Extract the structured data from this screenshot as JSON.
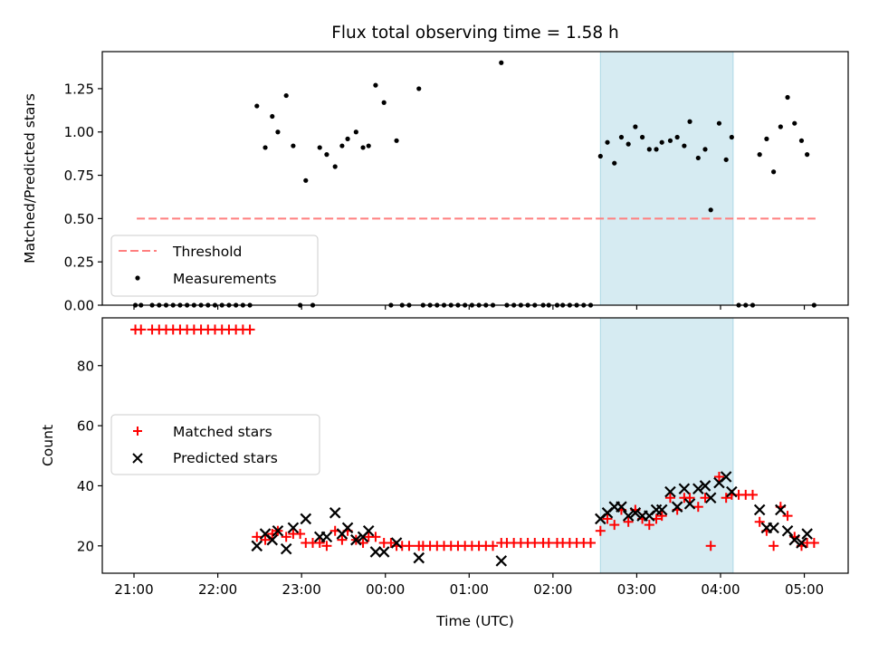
{
  "chart_data": [
    {
      "type": "scatter",
      "title": "Flux total observing time = 1.58 h",
      "xlabel": "",
      "ylabel": "Matched/Predicted stars",
      "ylim": [
        0,
        1.464
      ],
      "yticks": [
        0.0,
        0.25,
        0.5,
        0.75,
        1.0,
        1.25
      ],
      "ytick_labels": [
        "0.00",
        "0.25",
        "0.50",
        "0.75",
        "1.00",
        "1.25"
      ],
      "xlim_minutes_after_2100": [
        -22.7,
        511.4
      ],
      "xticks": [
        "21:00",
        "22:00",
        "23:00",
        "00:00",
        "01:00",
        "02:00",
        "03:00",
        "04:00",
        "05:00"
      ],
      "grid": false,
      "legend": {
        "placement": "lower-left",
        "entries": [
          "Threshold",
          "Measurements"
        ]
      },
      "shaded_region": {
        "start": "02:34",
        "end": "04:09",
        "color": "#add8e6"
      },
      "threshold": {
        "name": "Threshold",
        "value": 0.5,
        "start": "21:02",
        "end": "05:08",
        "color": "#ff7f7f",
        "style": "dashed"
      },
      "series": [
        {
          "name": "Measurements",
          "color": "#000000",
          "points": [
            [
              "21:01",
              0
            ],
            [
              "21:05",
              0
            ],
            [
              "21:13",
              0
            ],
            [
              "21:18",
              0
            ],
            [
              "21:23",
              0
            ],
            [
              "21:28",
              0
            ],
            [
              "21:33",
              0
            ],
            [
              "21:38",
              0
            ],
            [
              "21:43",
              0
            ],
            [
              "21:48",
              0
            ],
            [
              "21:53",
              0
            ],
            [
              "21:58",
              0
            ],
            [
              "22:03",
              0
            ],
            [
              "22:08",
              0
            ],
            [
              "22:13",
              0
            ],
            [
              "22:18",
              0
            ],
            [
              "22:23",
              0
            ],
            [
              "22:28",
              1.15
            ],
            [
              "22:34",
              0.91
            ],
            [
              "22:39",
              1.09
            ],
            [
              "22:43",
              1.0
            ],
            [
              "22:49",
              1.21
            ],
            [
              "22:54",
              0.92
            ],
            [
              "22:59",
              0
            ],
            [
              "23:03",
              0.72
            ],
            [
              "23:08",
              0
            ],
            [
              "23:13",
              0.91
            ],
            [
              "23:18",
              0.87
            ],
            [
              "23:24",
              0.8
            ],
            [
              "23:29",
              0.92
            ],
            [
              "23:33",
              0.96
            ],
            [
              "23:39",
              1.0
            ],
            [
              "23:44",
              0.91
            ],
            [
              "23:48",
              0.92
            ],
            [
              "23:53",
              1.27
            ],
            [
              "23:59",
              1.17
            ],
            [
              "00:04",
              0
            ],
            [
              "00:08",
              0.95
            ],
            [
              "00:12",
              0
            ],
            [
              "00:17",
              0
            ],
            [
              "00:24",
              1.25
            ],
            [
              "00:27",
              0
            ],
            [
              "00:32",
              0
            ],
            [
              "00:37",
              0
            ],
            [
              "00:42",
              0
            ],
            [
              "00:47",
              0
            ],
            [
              "00:52",
              0
            ],
            [
              "00:57",
              0
            ],
            [
              "01:02",
              0
            ],
            [
              "01:07",
              0
            ],
            [
              "01:12",
              0
            ],
            [
              "01:17",
              0
            ],
            [
              "01:23",
              1.4
            ],
            [
              "01:27",
              0
            ],
            [
              "01:32",
              0
            ],
            [
              "01:37",
              0
            ],
            [
              "01:42",
              0
            ],
            [
              "01:47",
              0
            ],
            [
              "01:53",
              0
            ],
            [
              "01:57",
              0
            ],
            [
              "02:03",
              0
            ],
            [
              "02:07",
              0
            ],
            [
              "02:12",
              0
            ],
            [
              "02:17",
              0
            ],
            [
              "02:22",
              0
            ],
            [
              "02:27",
              0
            ],
            [
              "02:34",
              0.86
            ],
            [
              "02:39",
              0.94
            ],
            [
              "02:44",
              0.82
            ],
            [
              "02:49",
              0.97
            ],
            [
              "02:54",
              0.93
            ],
            [
              "02:59",
              1.03
            ],
            [
              "03:04",
              0.97
            ],
            [
              "03:09",
              0.9
            ],
            [
              "03:14",
              0.9
            ],
            [
              "03:18",
              0.94
            ],
            [
              "03:24",
              0.95
            ],
            [
              "03:29",
              0.97
            ],
            [
              "03:34",
              0.92
            ],
            [
              "03:38",
              1.06
            ],
            [
              "03:44",
              0.85
            ],
            [
              "03:49",
              0.9
            ],
            [
              "03:53",
              0.55
            ],
            [
              "03:59",
              1.05
            ],
            [
              "04:04",
              0.84
            ],
            [
              "04:08",
              0.97
            ],
            [
              "04:13",
              0
            ],
            [
              "04:18",
              0
            ],
            [
              "04:23",
              0
            ],
            [
              "04:28",
              0.87
            ],
            [
              "04:33",
              0.96
            ],
            [
              "04:38",
              0.77
            ],
            [
              "04:43",
              1.03
            ],
            [
              "04:48",
              1.2
            ],
            [
              "04:53",
              1.05
            ],
            [
              "04:58",
              0.95
            ],
            [
              "05:02",
              0.87
            ],
            [
              "05:07",
              0
            ]
          ]
        }
      ]
    },
    {
      "type": "scatter",
      "title": "",
      "xlabel": "Time (UTC)",
      "ylabel": "Count",
      "ylim": [
        10.9,
        95.9
      ],
      "yticks": [
        20,
        40,
        60,
        80
      ],
      "ytick_labels": [
        "20",
        "40",
        "60",
        "80"
      ],
      "xlim_minutes_after_2100": [
        -22.7,
        511.4
      ],
      "xticks": [
        "21:00",
        "22:00",
        "23:00",
        "00:00",
        "01:00",
        "02:00",
        "03:00",
        "04:00",
        "05:00"
      ],
      "grid": false,
      "legend": {
        "placement": "center-left",
        "entries": [
          "Matched stars",
          "Predicted stars"
        ]
      },
      "shaded_region": {
        "start": "02:34",
        "end": "04:09",
        "color": "#add8e6"
      },
      "series": [
        {
          "name": "Matched stars",
          "marker": "+",
          "color": "#ff0000",
          "points": [
            [
              "21:01",
              92
            ],
            [
              "21:05",
              92
            ],
            [
              "21:13",
              92
            ],
            [
              "21:18",
              92
            ],
            [
              "21:23",
              92
            ],
            [
              "21:28",
              92
            ],
            [
              "21:33",
              92
            ],
            [
              "21:38",
              92
            ],
            [
              "21:43",
              92
            ],
            [
              "21:48",
              92
            ],
            [
              "21:53",
              92
            ],
            [
              "21:58",
              92
            ],
            [
              "22:03",
              92
            ],
            [
              "22:08",
              92
            ],
            [
              "22:13",
              92
            ],
            [
              "22:18",
              92
            ],
            [
              "22:23",
              92
            ],
            [
              "22:28",
              23
            ],
            [
              "22:34",
              22
            ],
            [
              "22:39",
              24
            ],
            [
              "22:43",
              25
            ],
            [
              "22:49",
              23
            ],
            [
              "22:54",
              24
            ],
            [
              "22:59",
              24
            ],
            [
              "23:03",
              21
            ],
            [
              "23:08",
              21
            ],
            [
              "23:13",
              21
            ],
            [
              "23:18",
              20
            ],
            [
              "23:24",
              25
            ],
            [
              "23:29",
              22
            ],
            [
              "23:33",
              25
            ],
            [
              "23:39",
              22
            ],
            [
              "23:44",
              21
            ],
            [
              "23:48",
              23
            ],
            [
              "23:53",
              23
            ],
            [
              "23:59",
              21
            ],
            [
              "00:04",
              21
            ],
            [
              "00:08",
              20
            ],
            [
              "00:12",
              20
            ],
            [
              "00:17",
              20
            ],
            [
              "00:24",
              20
            ],
            [
              "00:27",
              20
            ],
            [
              "00:32",
              20
            ],
            [
              "00:37",
              20
            ],
            [
              "00:42",
              20
            ],
            [
              "00:47",
              20
            ],
            [
              "00:52",
              20
            ],
            [
              "00:57",
              20
            ],
            [
              "01:02",
              20
            ],
            [
              "01:07",
              20
            ],
            [
              "01:12",
              20
            ],
            [
              "01:17",
              20
            ],
            [
              "01:23",
              21
            ],
            [
              "01:27",
              21
            ],
            [
              "01:32",
              21
            ],
            [
              "01:37",
              21
            ],
            [
              "01:42",
              21
            ],
            [
              "01:47",
              21
            ],
            [
              "01:53",
              21
            ],
            [
              "01:57",
              21
            ],
            [
              "02:03",
              21
            ],
            [
              "02:07",
              21
            ],
            [
              "02:12",
              21
            ],
            [
              "02:17",
              21
            ],
            [
              "02:22",
              21
            ],
            [
              "02:27",
              21
            ],
            [
              "02:34",
              25
            ],
            [
              "02:39",
              29
            ],
            [
              "02:44",
              27
            ],
            [
              "02:49",
              32
            ],
            [
              "02:54",
              28
            ],
            [
              "02:59",
              32
            ],
            [
              "03:04",
              29
            ],
            [
              "03:09",
              27
            ],
            [
              "03:14",
              29
            ],
            [
              "03:18",
              30
            ],
            [
              "03:24",
              36
            ],
            [
              "03:29",
              32
            ],
            [
              "03:34",
              36
            ],
            [
              "03:38",
              36
            ],
            [
              "03:44",
              33
            ],
            [
              "03:49",
              36
            ],
            [
              "03:53",
              20
            ],
            [
              "03:59",
              43
            ],
            [
              "04:04",
              36
            ],
            [
              "04:08",
              37
            ],
            [
              "04:13",
              37
            ],
            [
              "04:18",
              37
            ],
            [
              "04:23",
              37
            ],
            [
              "04:28",
              28
            ],
            [
              "04:33",
              25
            ],
            [
              "04:38",
              20
            ],
            [
              "04:43",
              33
            ],
            [
              "04:48",
              30
            ],
            [
              "04:53",
              23
            ],
            [
              "04:58",
              20
            ],
            [
              "05:02",
              21
            ],
            [
              "05:07",
              21
            ]
          ]
        },
        {
          "name": "Predicted stars",
          "marker": "x",
          "color": "#000000",
          "points": [
            [
              "22:28",
              20
            ],
            [
              "22:34",
              24
            ],
            [
              "22:39",
              22
            ],
            [
              "22:43",
              25
            ],
            [
              "22:49",
              19
            ],
            [
              "22:54",
              26
            ],
            [
              "23:03",
              29
            ],
            [
              "23:13",
              23
            ],
            [
              "23:18",
              23
            ],
            [
              "23:24",
              31
            ],
            [
              "23:29",
              24
            ],
            [
              "23:33",
              26
            ],
            [
              "23:39",
              22
            ],
            [
              "23:44",
              23
            ],
            [
              "23:48",
              25
            ],
            [
              "23:53",
              18
            ],
            [
              "23:59",
              18
            ],
            [
              "00:08",
              21
            ],
            [
              "00:24",
              16
            ],
            [
              "01:23",
              15
            ],
            [
              "02:34",
              29
            ],
            [
              "02:39",
              31
            ],
            [
              "02:44",
              33
            ],
            [
              "02:49",
              33
            ],
            [
              "02:54",
              30
            ],
            [
              "02:59",
              31
            ],
            [
              "03:04",
              30
            ],
            [
              "03:09",
              30
            ],
            [
              "03:14",
              32
            ],
            [
              "03:18",
              32
            ],
            [
              "03:24",
              38
            ],
            [
              "03:29",
              33
            ],
            [
              "03:34",
              39
            ],
            [
              "03:38",
              34
            ],
            [
              "03:44",
              39
            ],
            [
              "03:49",
              40
            ],
            [
              "03:53",
              36
            ],
            [
              "03:59",
              41
            ],
            [
              "04:04",
              43
            ],
            [
              "04:08",
              38
            ],
            [
              "04:28",
              32
            ],
            [
              "04:33",
              26
            ],
            [
              "04:38",
              26
            ],
            [
              "04:43",
              32
            ],
            [
              "04:48",
              25
            ],
            [
              "04:53",
              22
            ],
            [
              "04:58",
              21
            ],
            [
              "05:02",
              24
            ]
          ]
        }
      ]
    }
  ]
}
